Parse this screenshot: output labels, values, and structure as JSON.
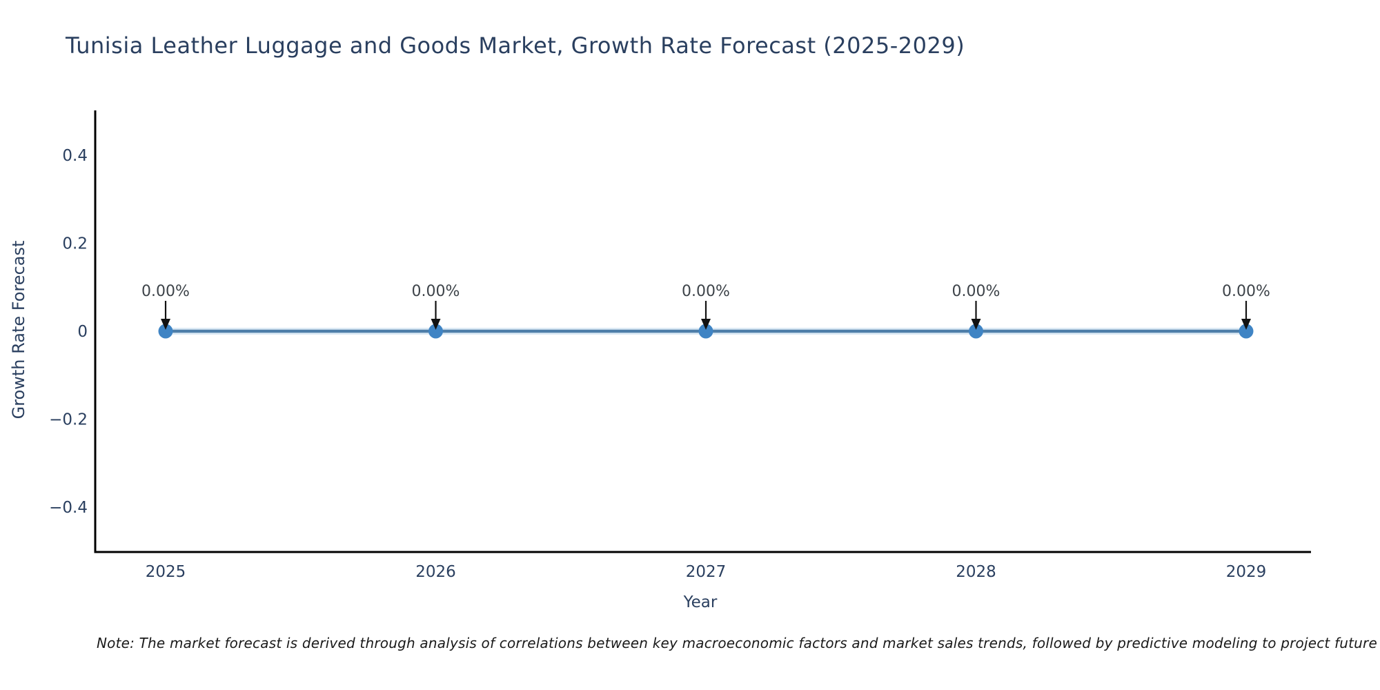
{
  "note": "Note: The market forecast is derived through analysis of correlations between key macroeconomic factors and market sales trends, followed by predictive modeling to project future sal",
  "chart_data": {
    "type": "line",
    "title": "Tunisia Leather Luggage and Goods Market, Growth Rate Forecast (2025-2029)",
    "xlabel": "Year",
    "ylabel": "Growth Rate Forecast",
    "categories": [
      "2025",
      "2026",
      "2027",
      "2028",
      "2029"
    ],
    "values": [
      0,
      0,
      0,
      0,
      0
    ],
    "point_labels": [
      "0.00%",
      "0.00%",
      "0.00%",
      "0.00%",
      "0.00%"
    ],
    "ylim": [
      -0.5,
      0.5
    ],
    "yticks": [
      0.4,
      0.2,
      0,
      -0.2,
      -0.4
    ],
    "ytick_labels": [
      "0.4",
      "0.2",
      "0",
      "−0.2",
      "−0.4"
    ],
    "grid": false,
    "legend": "none",
    "marker_style": "circle",
    "annotation_arrow": "down",
    "colors": {
      "text": "#2a3f5f",
      "annotation_text": "#3d4349",
      "axis_line": "#000000",
      "series_line": "#4e7ea9",
      "series_line_halo": "#d9e8f4",
      "marker_fill": "#3f84c4",
      "arrow": "#111111",
      "note_text": "#1a1a1a",
      "background": "#ffffff"
    }
  }
}
